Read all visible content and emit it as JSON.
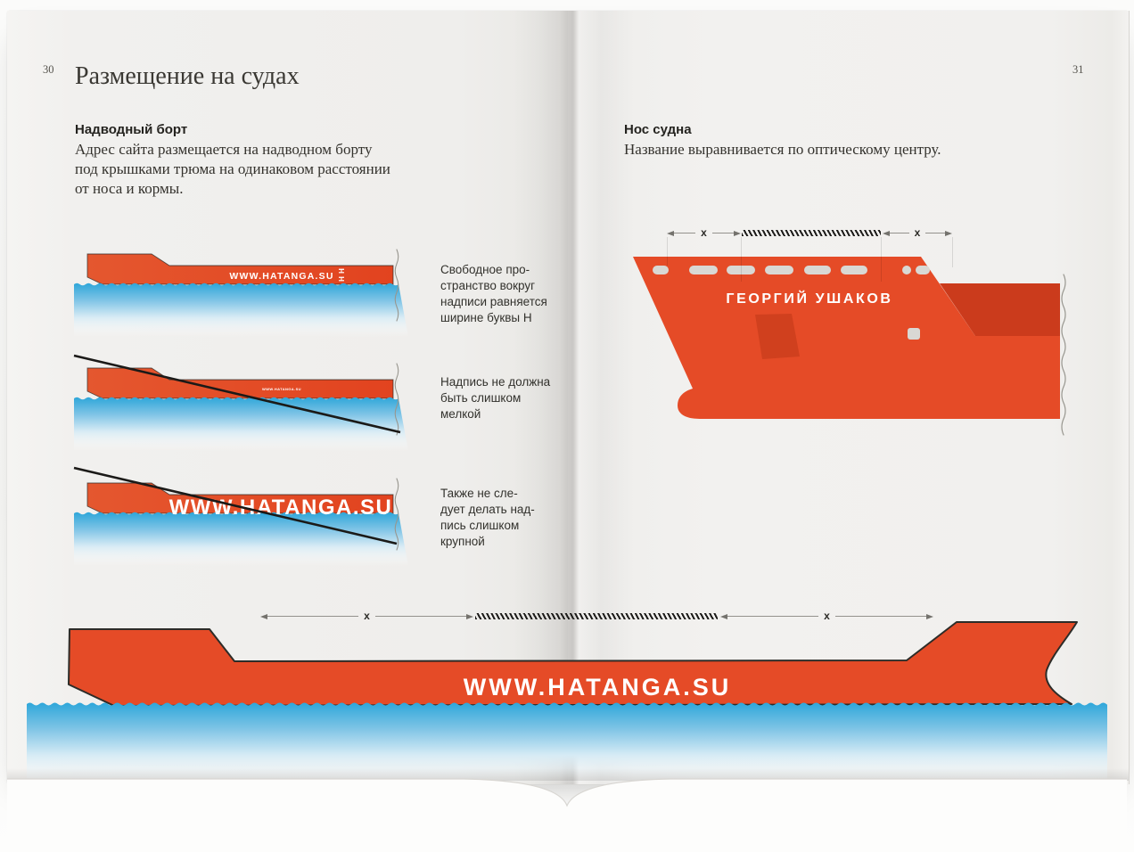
{
  "page": {
    "left_number": "30",
    "right_number": "31",
    "title": "Размещение на судах"
  },
  "sections": {
    "freeboard": {
      "heading": "Надводный борт",
      "body_lines": [
        "Адрес сайта размещается на надводном борту",
        "под крышками трюма на одинаковом расстоянии",
        "от носа и кормы."
      ]
    },
    "bow": {
      "heading": "Нос судна",
      "body": "Название выравнивается по оптическому центру."
    }
  },
  "figures": {
    "ship_ok": {
      "hull_label": "WWW.HATANGA.SU",
      "h_mark": "H",
      "caption_lines": [
        "Свободное про-",
        "странство вокруг",
        "надписи равняется",
        "ширине буквы Н"
      ]
    },
    "ship_too_small": {
      "hull_label": "WWW.HATANGA.SU",
      "caption_lines": [
        "Надпись не должна",
        "быть слишком",
        "мелкой"
      ]
    },
    "ship_too_big": {
      "hull_label": "WWW.HATANGA.SU",
      "caption_lines": [
        "Также не сле-",
        "дует делать над-",
        "пись слишком",
        "крупной"
      ]
    },
    "bow_front": {
      "ship_name": "ГЕОРГИЙ УШАКОВ",
      "dim_left_label": "x",
      "dim_right_label": "x"
    },
    "full_ship": {
      "hull_label": "WWW.HATANGA.SU",
      "dim_left_label": "x",
      "dim_right_label": "x"
    }
  },
  "colors": {
    "hull_red": "#e54b27",
    "hull_red_dark": "#cb3b1c",
    "water_blue": "#2ea6d9",
    "ink": "#34322d",
    "label_white": "#ffffff"
  }
}
